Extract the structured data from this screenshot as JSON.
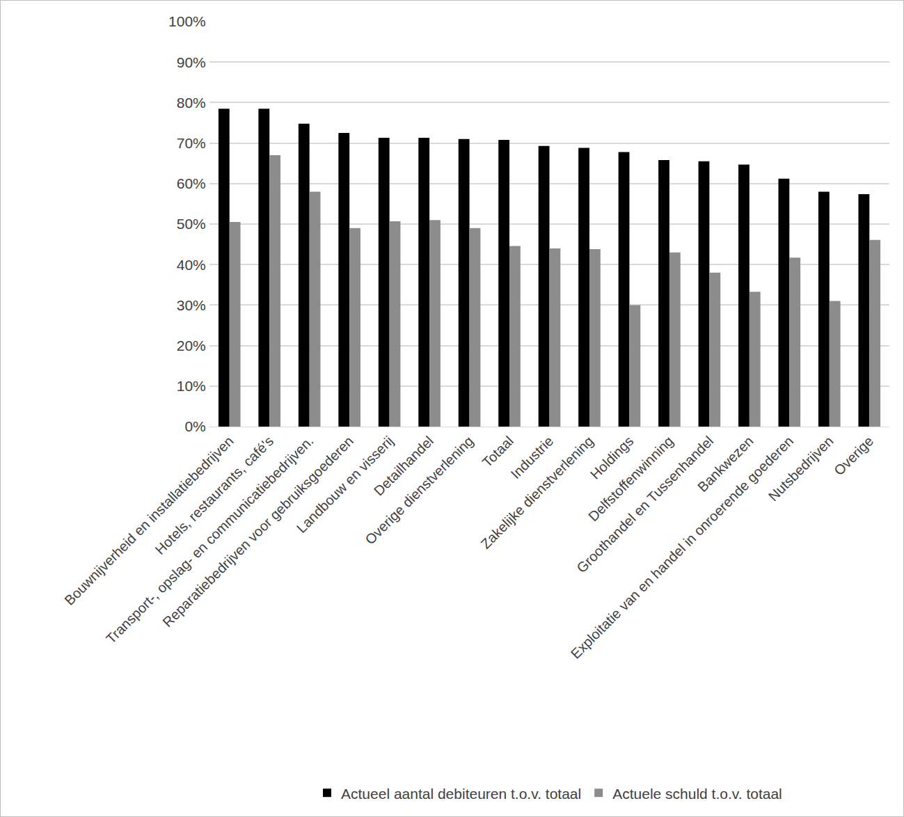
{
  "chart_data": {
    "type": "bar",
    "categories": [
      "Bouwnijverheid en installatiebedrijven",
      "Hotels, restaurants, café's",
      "Transport-, opslag- en communicatiebedrijven.",
      "Reparatiebedrijven voor gebruiksgoederen",
      "Landbouw en visserij",
      "Detailhandel",
      "Overige dienstverlening",
      "Totaal",
      "Industrie",
      "Zakelijke dienstverlening",
      "Holdings",
      "Delfstoffenwinning",
      "Groothandel en Tussenhandel",
      "Bankwezen",
      "Exploitatie van en handel in onroerende goederen",
      "Nutsbedrijven",
      "Overige"
    ],
    "series": [
      {
        "name": "Actueel aantal debiteuren t.o.v. totaal",
        "color": "#000000",
        "values": [
          78.5,
          78.5,
          74.8,
          72.5,
          71.3,
          71.3,
          71.0,
          70.8,
          69.3,
          68.8,
          67.8,
          65.8,
          65.5,
          64.7,
          61.2,
          58.0,
          57.4
        ]
      },
      {
        "name": "Actuele schuld t.o.v. totaal",
        "color": "#8c8c8c",
        "values": [
          50.5,
          67.0,
          58.0,
          49.0,
          50.7,
          51.0,
          49.0,
          44.6,
          44.0,
          43.8,
          30.0,
          43.0,
          38.0,
          33.3,
          41.7,
          31.0,
          46.1
        ]
      }
    ],
    "ylim": [
      0,
      100
    ],
    "yticks": [
      {
        "value": 0,
        "label": "0%"
      },
      {
        "value": 10,
        "label": "10%"
      },
      {
        "value": 20,
        "label": "20%"
      },
      {
        "value": 30,
        "label": "30%"
      },
      {
        "value": 40,
        "label": "40%"
      },
      {
        "value": 50,
        "label": "50%"
      },
      {
        "value": 60,
        "label": "60%"
      },
      {
        "value": 70,
        "label": "70%"
      },
      {
        "value": 80,
        "label": "80%"
      },
      {
        "value": 90,
        "label": "90%"
      },
      {
        "value": 100,
        "label": "100%"
      }
    ],
    "grid": true,
    "legend": "bottom"
  }
}
